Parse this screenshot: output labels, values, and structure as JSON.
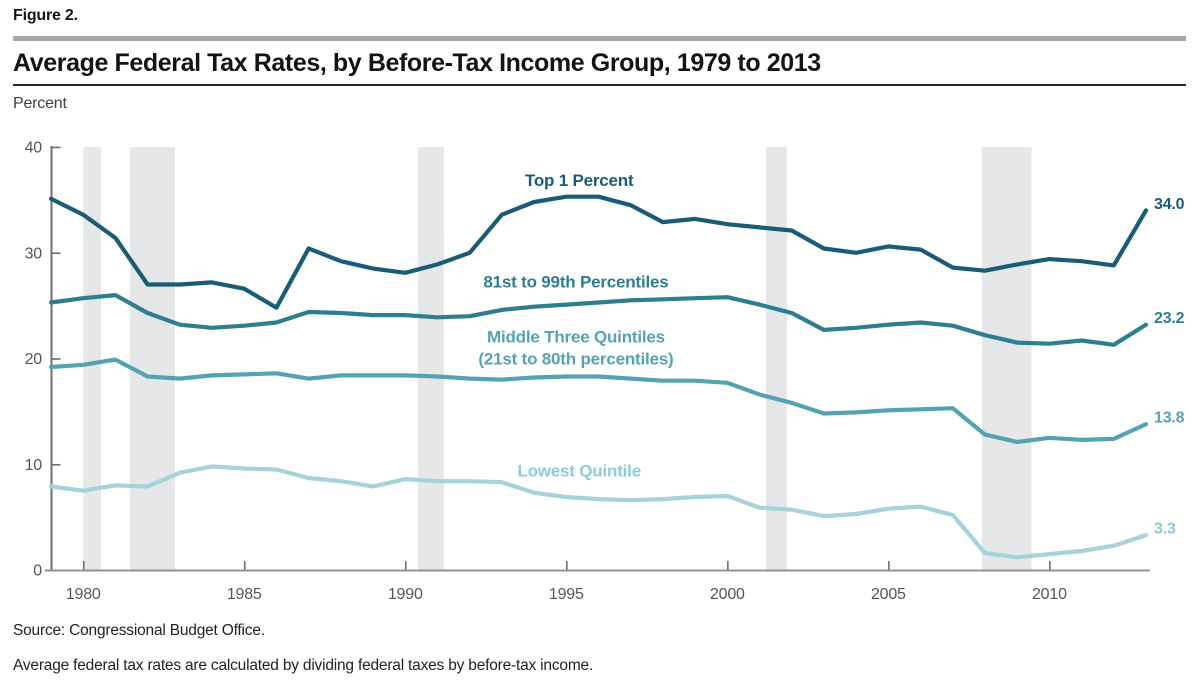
{
  "figure_label": "Figure 2.",
  "title": "Average Federal Tax Rates, by Before-Tax Income Group, 1979 to 2013",
  "axis_unit_label": "Percent",
  "source_note": "Source: Congressional Budget Office.",
  "footnote": "Average federal tax rates are calculated by dividing federal taxes by before-tax income.",
  "chart_data": {
    "type": "line",
    "title": "Average Federal Tax Rates, by Before-Tax Income Group, 1979 to 2013",
    "xlabel": "",
    "ylabel": "Percent",
    "xlim": [
      1979,
      2013
    ],
    "ylim": [
      0,
      40
    ],
    "yticks": [
      0,
      10,
      20,
      30,
      40
    ],
    "xticks": [
      1980,
      1985,
      1990,
      1995,
      2000,
      2005,
      2010
    ],
    "grid": false,
    "legend": "inline-labels",
    "band_color": "#e6e7e8",
    "axis_color": "#6d6e71",
    "recession_bands": [
      [
        1980.0,
        1980.55
      ],
      [
        1981.45,
        1982.85
      ],
      [
        1990.4,
        1991.2
      ],
      [
        2001.2,
        2001.85
      ],
      [
        2007.9,
        2009.45
      ]
    ],
    "x": [
      1979,
      1980,
      1981,
      1982,
      1983,
      1984,
      1985,
      1986,
      1987,
      1988,
      1989,
      1990,
      1991,
      1992,
      1993,
      1994,
      1995,
      1996,
      1997,
      1998,
      1999,
      2000,
      2001,
      2002,
      2003,
      2004,
      2005,
      2006,
      2007,
      2008,
      2009,
      2010,
      2011,
      2012,
      2013
    ],
    "series": [
      {
        "name": "Top 1 Percent",
        "color": "#1a5c77",
        "end_label": "34.0",
        "annotation": {
          "x": 1995.4,
          "y": 36.9,
          "lines": [
            "Top 1 Percent"
          ]
        },
        "values": [
          35.1,
          33.6,
          31.4,
          27.0,
          27.0,
          27.2,
          26.6,
          24.8,
          30.4,
          29.2,
          28.5,
          28.1,
          28.9,
          30.0,
          33.6,
          34.8,
          35.3,
          35.3,
          34.5,
          32.9,
          33.2,
          32.7,
          32.4,
          32.1,
          30.4,
          30.0,
          30.6,
          30.3,
          28.6,
          28.3,
          28.9,
          29.4,
          29.2,
          28.8,
          34.0
        ]
      },
      {
        "name": "81st to 99th Percentiles",
        "color": "#2e7e92",
        "end_label": "23.2",
        "annotation": {
          "x": 1995.3,
          "y": 27.3,
          "lines": [
            "81st to 99th Percentiles"
          ]
        },
        "values": [
          25.3,
          25.7,
          26.0,
          24.3,
          23.2,
          22.9,
          23.1,
          23.4,
          24.4,
          24.3,
          24.1,
          24.1,
          23.9,
          24.0,
          24.6,
          24.9,
          25.1,
          25.3,
          25.5,
          25.6,
          25.7,
          25.8,
          25.1,
          24.3,
          22.7,
          22.9,
          23.2,
          23.4,
          23.1,
          22.2,
          21.5,
          21.4,
          21.7,
          21.3,
          23.2
        ]
      },
      {
        "name": "Middle Three Quintiles (21st to 80th percentiles)",
        "color": "#55a3b2",
        "end_label": "13.8",
        "annotation": {
          "x": 1995.3,
          "y": 22.1,
          "lines": [
            "Middle Three Quintiles",
            "(21st to 80th percentiles)"
          ]
        },
        "values": [
          19.2,
          19.4,
          19.9,
          18.3,
          18.1,
          18.4,
          18.5,
          18.6,
          18.1,
          18.4,
          18.4,
          18.4,
          18.3,
          18.1,
          18.0,
          18.2,
          18.3,
          18.3,
          18.1,
          17.9,
          17.9,
          17.7,
          16.6,
          15.8,
          14.8,
          14.9,
          15.1,
          15.2,
          15.3,
          12.8,
          12.1,
          12.5,
          12.3,
          12.4,
          13.8
        ]
      },
      {
        "name": "Lowest Quintile",
        "color": "#a5d2db",
        "label_color": "#8fcbd6",
        "end_label": "3.3",
        "annotation": {
          "x": 1995.4,
          "y": 9.4,
          "lines": [
            "Lowest Quintile"
          ]
        },
        "values": [
          7.9,
          7.5,
          8.0,
          7.9,
          9.2,
          9.8,
          9.6,
          9.5,
          8.7,
          8.4,
          7.9,
          8.6,
          8.4,
          8.4,
          8.3,
          7.3,
          6.9,
          6.7,
          6.6,
          6.7,
          6.9,
          7.0,
          5.9,
          5.7,
          5.1,
          5.3,
          5.8,
          6.0,
          5.2,
          1.6,
          1.2,
          1.5,
          1.8,
          2.3,
          3.3
        ]
      }
    ]
  }
}
